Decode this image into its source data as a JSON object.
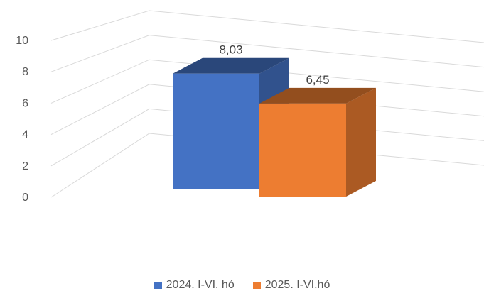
{
  "chart_data": {
    "type": "bar",
    "view": "3d-clustered-column",
    "categories": [
      ""
    ],
    "series": [
      {
        "name": "2024. I-VI. hó",
        "values": [
          8.03
        ],
        "label": "8,03",
        "color": "#4472C4"
      },
      {
        "name": "2025. I-VI.hó",
        "values": [
          6.45
        ],
        "label": "6,45",
        "color": "#ED7D31"
      }
    ],
    "yticks": [
      "0",
      "2",
      "4",
      "6",
      "8",
      "10"
    ],
    "ylim": [
      0,
      10
    ],
    "grid": true,
    "legend": "bottom"
  }
}
